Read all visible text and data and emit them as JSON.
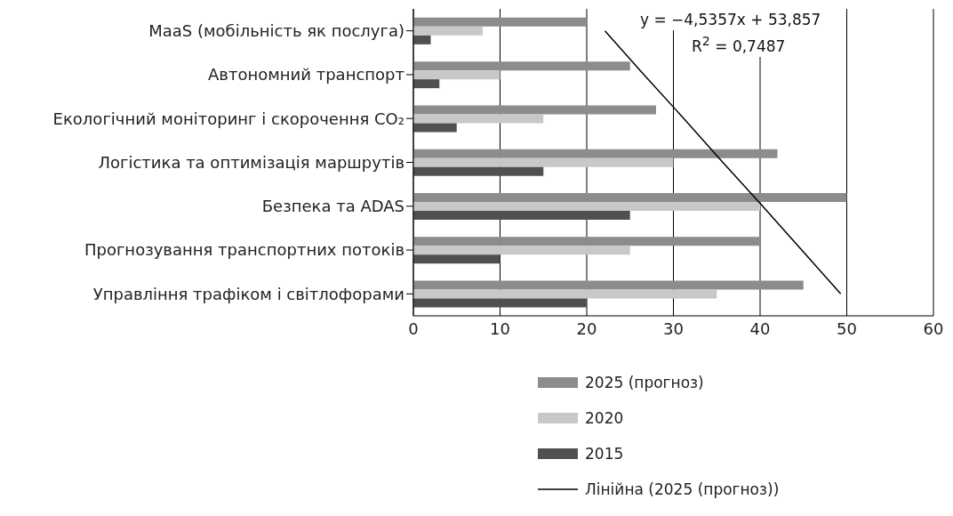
{
  "chart_data": {
    "type": "bar",
    "orientation": "horizontal",
    "categories": [
      "MaaS (мобільність як послуга)",
      "Автономний транспорт",
      "Екологічний моніторинг і скорочення CO₂",
      "Логістика та оптимізація маршрутів",
      "Безпека та ADAS",
      "Прогнозування транспортних потоків",
      "Управління трафіком і світлофорами"
    ],
    "series": [
      {
        "name": "2025 (прогноз)",
        "color": "#8c8c8c",
        "values": [
          20,
          25,
          28,
          42,
          50,
          40,
          45
        ]
      },
      {
        "name": "2020",
        "color": "#c8c8c8",
        "values": [
          8,
          10,
          15,
          30,
          40,
          25,
          35
        ]
      },
      {
        "name": "2015",
        "color": "#505050",
        "values": [
          2,
          3,
          5,
          15,
          25,
          10,
          20
        ]
      },
      {
        "name": "Лінійна (2025 (прогноз))",
        "type": "line",
        "color": "#000000",
        "values": [
          22.1,
          26.6,
          31.2,
          35.7,
          40.3,
          44.8,
          49.3
        ]
      }
    ],
    "xlim": [
      0,
      60
    ],
    "xticks": [
      0,
      10,
      20,
      30,
      40,
      50,
      60
    ],
    "grid": "x",
    "legend": "bottom",
    "marker": "none",
    "annotations": [
      "y = −4,5357x + 53,857",
      "R$^{2}$ = 0,7487"
    ]
  }
}
